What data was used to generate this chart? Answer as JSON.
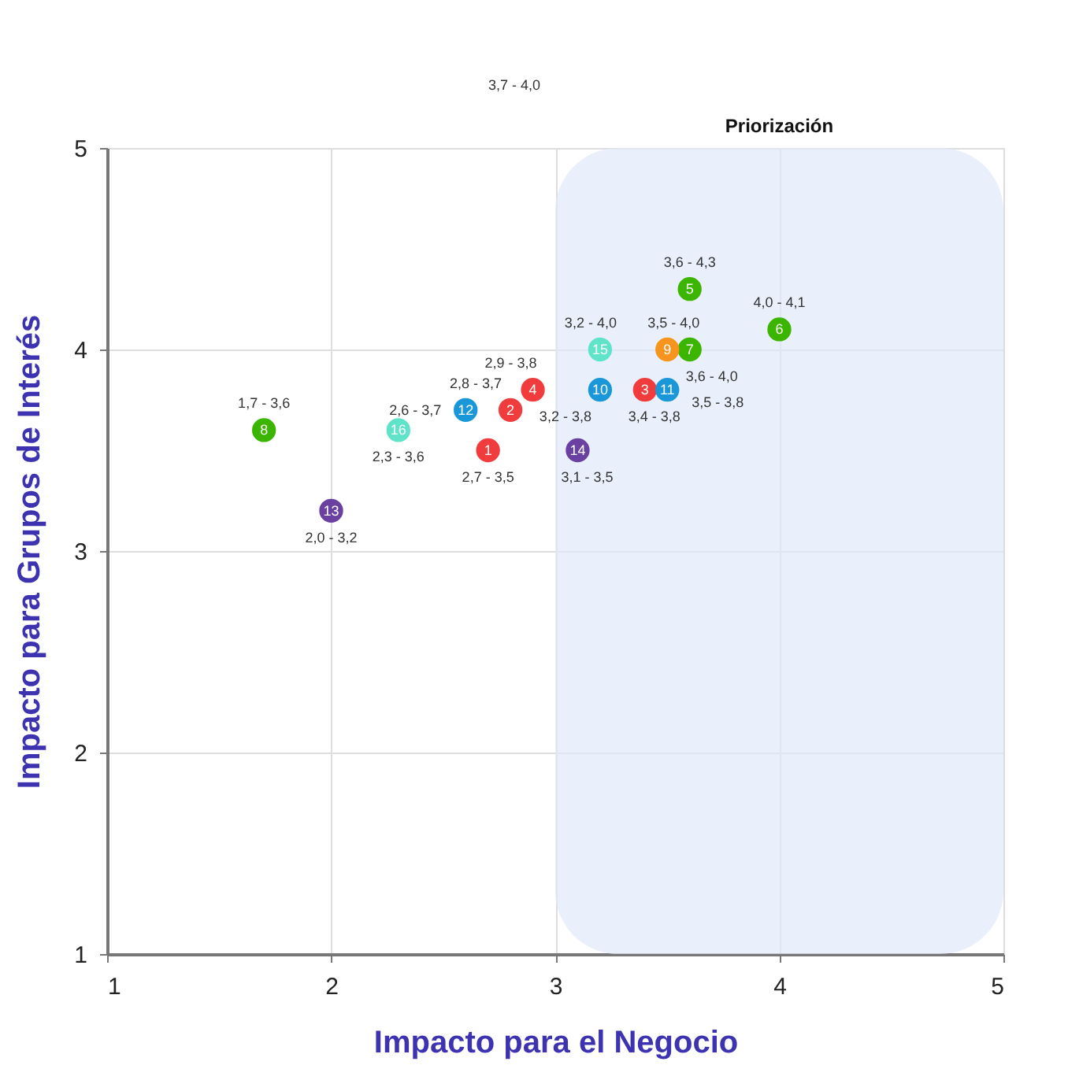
{
  "chart_data": {
    "type": "scatter",
    "xlabel": "Impacto para el Negocio",
    "ylabel": "Impacto para Grupos de Interés",
    "x": [
      2.7,
      2.8,
      3.4,
      2.9,
      3.6,
      4.0,
      3.6,
      1.7,
      3.5,
      3.2,
      3.5,
      2.6,
      2.0,
      3.1,
      3.2,
      2.3
    ],
    "values": [
      3.5,
      3.7,
      3.8,
      3.8,
      4.3,
      4.1,
      4.0,
      3.6,
      4.0,
      3.8,
      3.8,
      3.7,
      3.2,
      3.5,
      4.0,
      3.6
    ],
    "colors": [
      "#f03c3c",
      "#f03c3c",
      "#f03c3c",
      "#f03c3c",
      "#3cb500",
      "#3cb500",
      "#3cb500",
      "#3cb500",
      "#f7941d",
      "#1a97d9",
      "#1a97d9",
      "#1a97d9",
      "#6a40a0",
      "#6a40a0",
      "#5fe3c9",
      "#5fe3c9"
    ],
    "value_labels": [
      "2,7 - 3,5",
      "2,8 - 3,7",
      "3,4 - 3,8",
      "2,9 - 3,8",
      "3,6 - 4,3",
      "4,0 - 4,1",
      "3,6 - 4,0",
      "1,7 - 3,6",
      "3,5 - 4,0",
      "3,2 - 3,8",
      "3,5 - 3,8",
      "2,6 - 3,7",
      "2,0 - 3,2",
      "3,1 - 3,5",
      "3,2 - 4,0",
      "2,3 - 3,6"
    ],
    "annotations": [
      {
        "text": "1",
        "x": 2.7,
        "y": 3.5
      },
      {
        "text": "2",
        "x": 2.8,
        "y": 3.7
      },
      {
        "text": "3",
        "x": 3.4,
        "y": 3.8
      },
      {
        "text": "4",
        "x": 2.9,
        "y": 3.8
      },
      {
        "text": "5",
        "x": 3.6,
        "y": 4.3
      },
      {
        "text": "6",
        "x": 4.0,
        "y": 4.1
      },
      {
        "text": "7",
        "x": 3.6,
        "y": 4.0
      },
      {
        "text": "8",
        "x": 1.7,
        "y": 3.6
      },
      {
        "text": "9",
        "x": 3.5,
        "y": 4.0
      },
      {
        "text": "10",
        "x": 3.2,
        "y": 3.8
      },
      {
        "text": "11",
        "x": 3.5,
        "y": 3.8
      },
      {
        "text": "12",
        "x": 2.6,
        "y": 3.7
      },
      {
        "text": "13",
        "x": 2.0,
        "y": 3.2
      },
      {
        "text": "14",
        "x": 3.1,
        "y": 3.5
      },
      {
        "text": "15",
        "x": 3.2,
        "y": 4.0
      },
      {
        "text": "16",
        "x": 2.3,
        "y": 3.6
      },
      "3,7 - 4,0"
    ],
    "bands": [
      {
        "axis": "x",
        "from": 3,
        "to": 5,
        "label": "Priorización",
        "color": "#dfe9fb"
      }
    ],
    "xlim": [
      1,
      5
    ],
    "ylim": [
      1,
      5
    ],
    "xticks": [
      1,
      2,
      3,
      4,
      5
    ],
    "yticks": [
      1,
      2,
      3,
      4,
      5
    ],
    "grid": true,
    "marker": "circle"
  }
}
